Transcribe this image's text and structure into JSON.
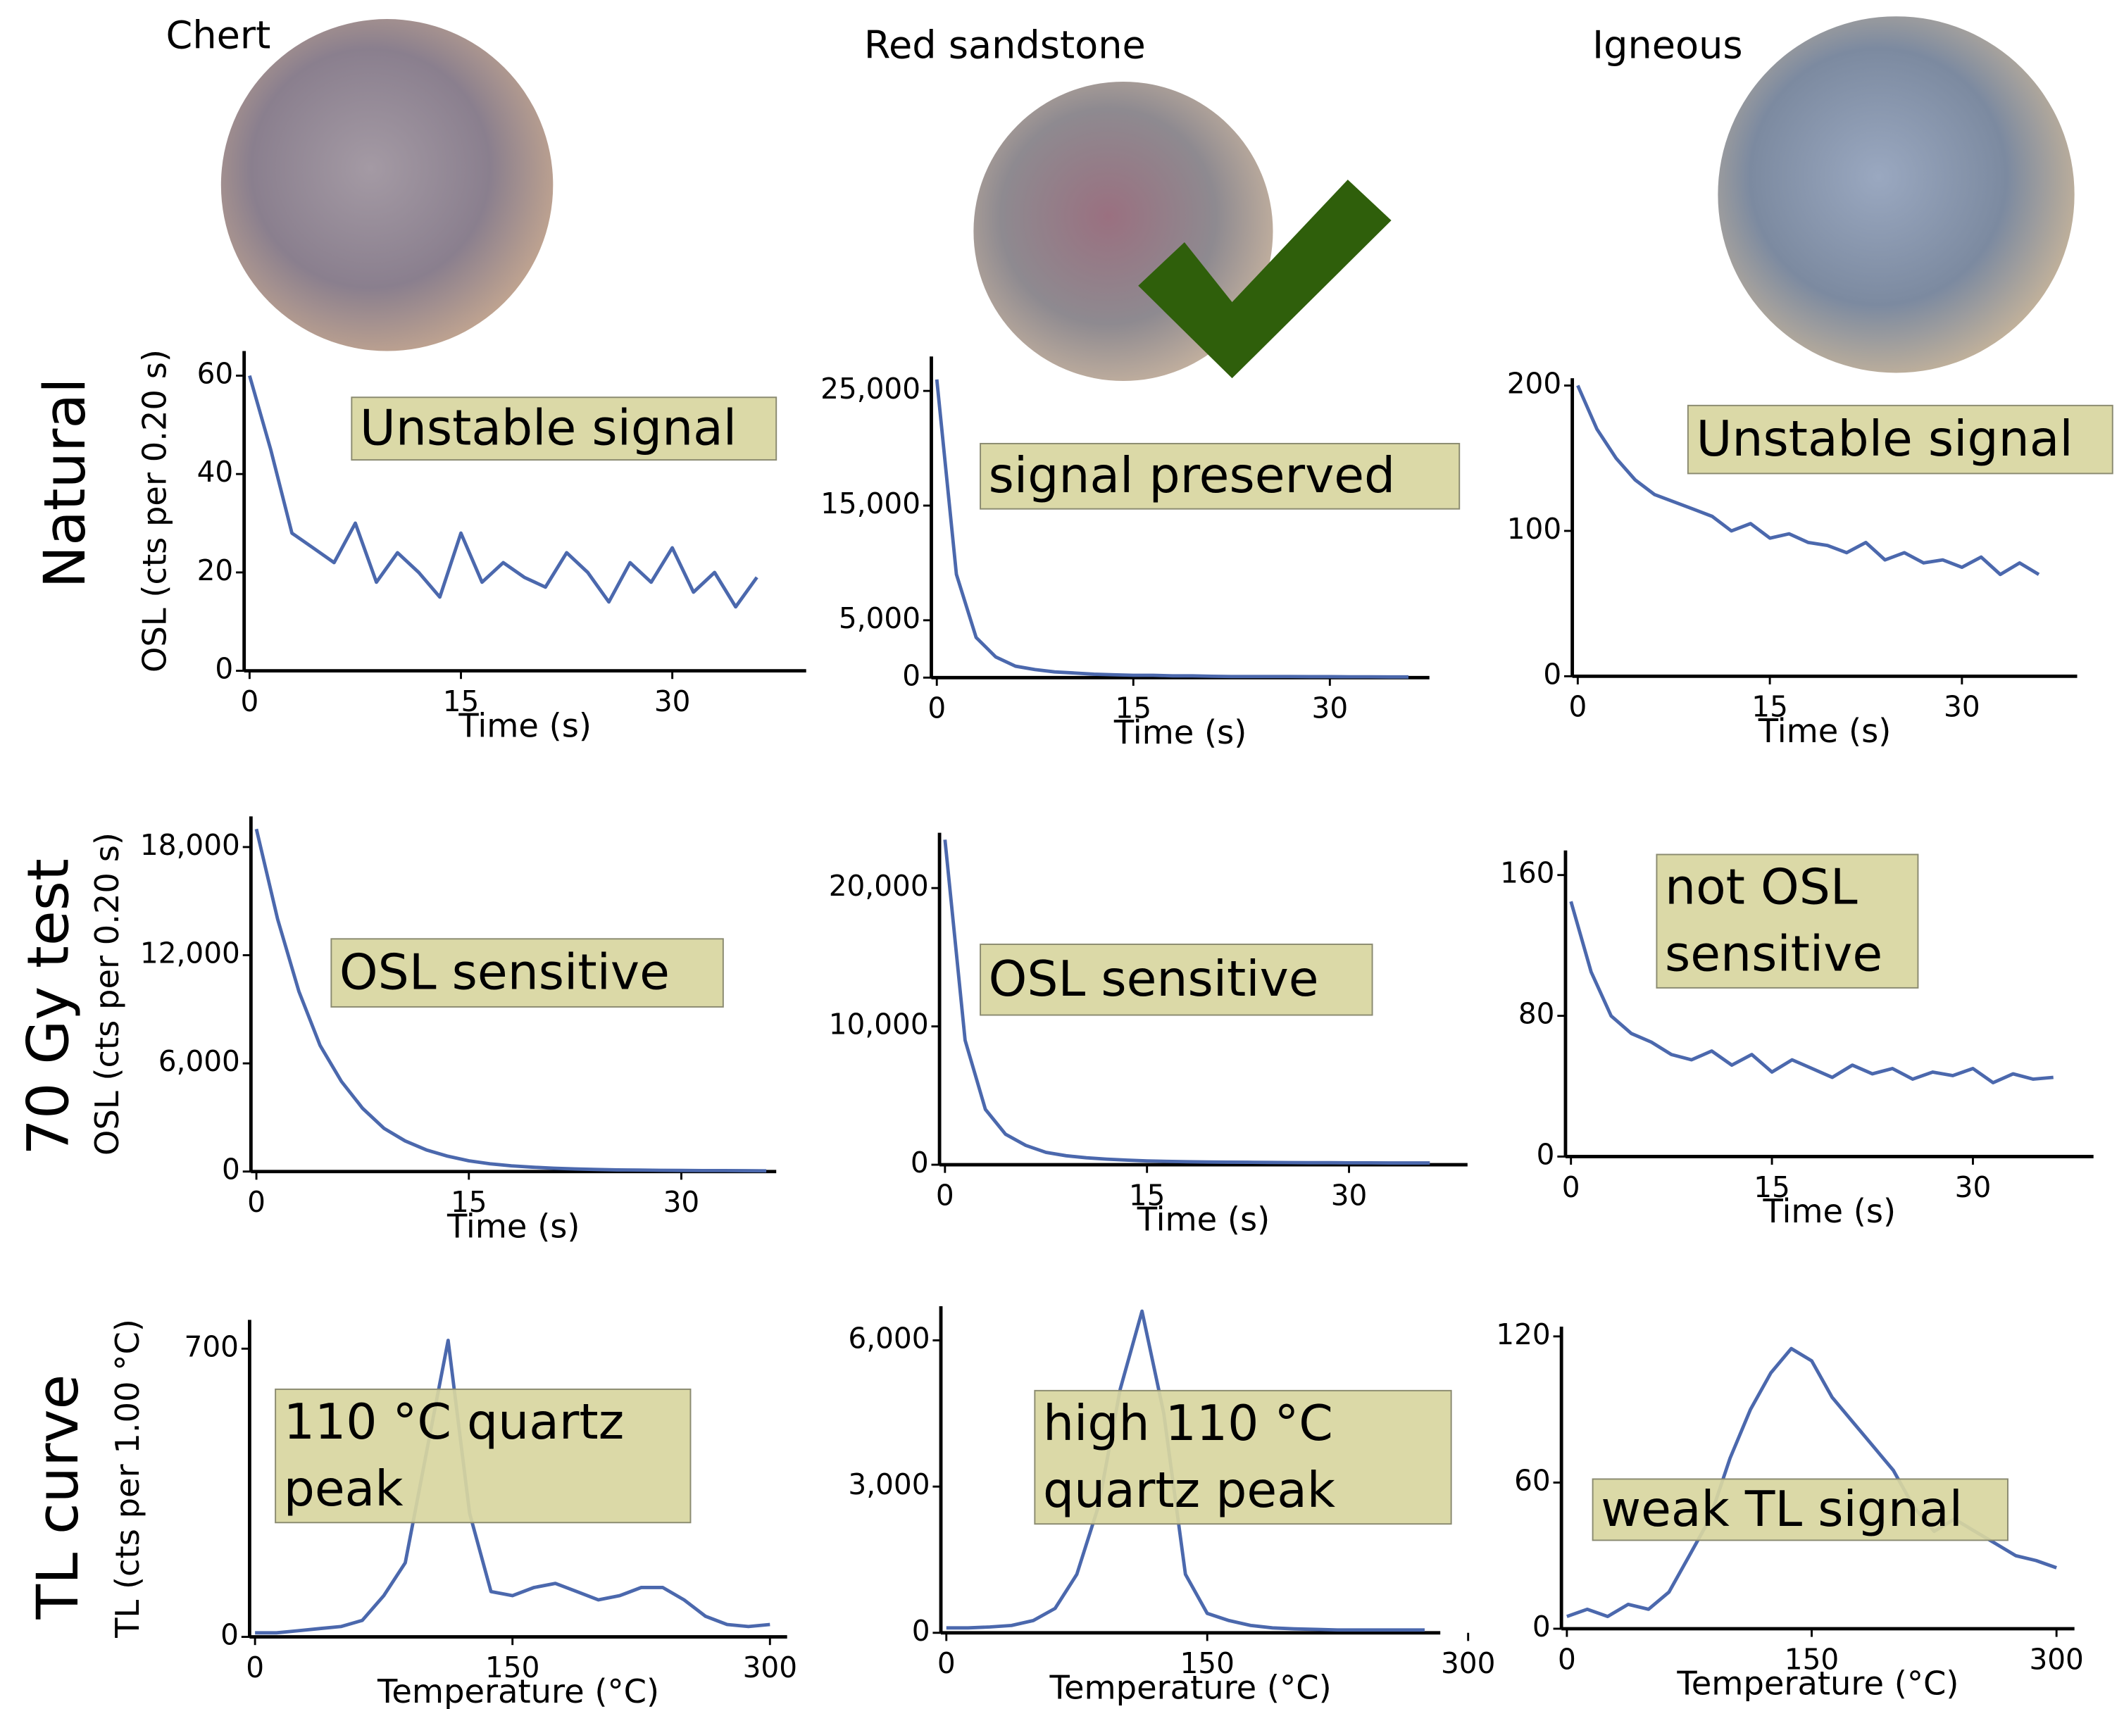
{
  "columns": [
    "Chert",
    "Red sandstone",
    "Igneous"
  ],
  "rows": [
    "Natural",
    "70 Gy test",
    "TL curve"
  ],
  "chart_data": [
    {
      "type": "line",
      "annotation": [
        "Unstable signal"
      ],
      "xlabel": "Time (s)",
      "ylabel": "OSL (cts per 0.20 s)",
      "color": "#4b68ad",
      "xlim": [
        0,
        39.5
      ],
      "xticks": [
        0,
        15,
        30
      ],
      "ylim": [
        0,
        65
      ],
      "yticks": [
        0,
        20,
        40,
        60
      ],
      "x": [
        0,
        1.5,
        3,
        4.5,
        6,
        7.5,
        9,
        10.5,
        12,
        13.5,
        15,
        16.5,
        18,
        19.5,
        21,
        22.5,
        24,
        25.5,
        27,
        28.5,
        30,
        31.5,
        33,
        34.5,
        36
      ],
      "values": [
        60,
        45,
        28,
        25,
        22,
        30,
        18,
        24,
        20,
        15,
        28,
        18,
        22,
        19,
        17,
        24,
        20,
        14,
        22,
        18,
        25,
        16,
        20,
        13,
        19
      ]
    },
    {
      "type": "line",
      "annotation": [
        "signal preserved"
      ],
      "xlabel": "Time (s)",
      "color": "#4b68ad",
      "xlim": [
        0,
        37.6
      ],
      "xticks": [
        0,
        15,
        30
      ],
      "ylim": [
        0,
        28000
      ],
      "yticks": [
        0,
        {
          "value": 5000,
          "label": "5,000"
        },
        {
          "value": 15000,
          "label": "15,000"
        },
        {
          "value": 25000,
          "label": "25,000"
        }
      ],
      "x": [
        0,
        1.5,
        3,
        4.5,
        6,
        7.5,
        9,
        10.5,
        12,
        13.5,
        15,
        16.5,
        18,
        19.5,
        21,
        22.5,
        24,
        25.5,
        27,
        28.5,
        30,
        31.5,
        33,
        34.5,
        36
      ],
      "values": [
        26000,
        9000,
        3500,
        1800,
        1000,
        700,
        500,
        400,
        300,
        250,
        200,
        200,
        150,
        150,
        120,
        100,
        100,
        100,
        90,
        80,
        80,
        70,
        70,
        60,
        60
      ]
    },
    {
      "type": "line",
      "annotation": [
        "Unstable signal"
      ],
      "xlabel": "Time (s)",
      "color": "#4b68ad",
      "xlim": [
        0,
        39
      ],
      "xticks": [
        0,
        15,
        30
      ],
      "ylim": [
        0,
        205
      ],
      "yticks": [
        0,
        100,
        200
      ],
      "x": [
        0,
        1.5,
        3,
        4.5,
        6,
        7.5,
        9,
        10.5,
        12,
        13.5,
        15,
        16.5,
        18,
        19.5,
        21,
        22.5,
        24,
        25.5,
        27,
        28.5,
        30,
        31.5,
        33,
        34.5,
        36
      ],
      "values": [
        200,
        170,
        150,
        135,
        125,
        120,
        115,
        110,
        100,
        105,
        95,
        98,
        92,
        90,
        85,
        92,
        80,
        85,
        78,
        80,
        75,
        82,
        70,
        78,
        70
      ]
    },
    {
      "type": "line",
      "annotation": [
        "OSL sensitive"
      ],
      "xlabel": "Time (s)",
      "ylabel": "OSL (cts per 0.20 s)",
      "color": "#4b68ad",
      "xlim": [
        0,
        36.7
      ],
      "xticks": [
        0,
        15,
        30
      ],
      "ylim": [
        0,
        19700
      ],
      "yticks": [
        0,
        {
          "value": 6000,
          "label": "6,000"
        },
        {
          "value": 12000,
          "label": "12,000"
        },
        {
          "value": 18000,
          "label": "18,000"
        }
      ],
      "x": [
        0,
        1.5,
        3,
        4.5,
        6,
        7.5,
        9,
        10.5,
        12,
        13.5,
        15,
        16.5,
        18,
        19.5,
        21,
        22.5,
        24,
        25.5,
        27,
        28.5,
        30,
        31.5,
        33,
        34.5,
        36
      ],
      "values": [
        19000,
        14000,
        10000,
        7000,
        5000,
        3500,
        2400,
        1700,
        1200,
        850,
        600,
        430,
        320,
        240,
        180,
        140,
        110,
        90,
        80,
        70,
        60,
        55,
        50,
        45,
        40
      ]
    },
    {
      "type": "line",
      "annotation": [
        "OSL sensitive"
      ],
      "xlabel": "Time (s)",
      "color": "#4b68ad",
      "xlim": [
        0,
        38.8
      ],
      "xticks": [
        0,
        15,
        30
      ],
      "ylim": [
        0,
        24000
      ],
      "yticks": [
        0,
        {
          "value": 10000,
          "label": "10,000"
        },
        {
          "value": 20000,
          "label": "20,000"
        }
      ],
      "x": [
        0,
        1.5,
        3,
        4.5,
        6,
        7.5,
        9,
        10.5,
        12,
        13.5,
        15,
        16.5,
        18,
        19.5,
        21,
        22.5,
        24,
        25.5,
        27,
        28.5,
        30,
        31.5,
        33,
        34.5,
        36
      ],
      "values": [
        23500,
        9000,
        4000,
        2200,
        1400,
        900,
        650,
        500,
        400,
        330,
        280,
        250,
        220,
        200,
        190,
        180,
        170,
        160,
        150,
        150,
        140,
        140,
        130,
        130,
        130
      ]
    },
    {
      "type": "line",
      "annotation": [
        "not OSL",
        "sensitive"
      ],
      "xlabel": "Time (s)",
      "color": "#4b68ad",
      "xlim": [
        0,
        39
      ],
      "xticks": [
        0,
        15,
        30
      ],
      "ylim": [
        0,
        174
      ],
      "yticks": [
        0,
        80,
        160
      ],
      "x": [
        0,
        1.5,
        3,
        4.5,
        6,
        7.5,
        9,
        10.5,
        12,
        13.5,
        15,
        16.5,
        18,
        19.5,
        21,
        22.5,
        24,
        25.5,
        27,
        28.5,
        30,
        31.5,
        33,
        34.5,
        36
      ],
      "values": [
        145,
        105,
        80,
        70,
        65,
        58,
        55,
        60,
        52,
        58,
        48,
        55,
        50,
        45,
        52,
        47,
        50,
        44,
        48,
        46,
        50,
        42,
        47,
        44,
        45
      ]
    },
    {
      "type": "line",
      "annotation": [
        "110 °C quartz",
        "peak"
      ],
      "xlabel": "Temperature (°C)",
      "ylabel": "TL (cts per 1.00 °C)",
      "color": "#4b68ad",
      "xlim": [
        0,
        310
      ],
      "xticks": [
        0,
        150,
        300
      ],
      "ylim": [
        0,
        770
      ],
      "yticks": [
        0,
        700
      ],
      "x": [
        0,
        12.5,
        25,
        37.5,
        50,
        62.5,
        75,
        87.5,
        100,
        112.5,
        125,
        137.5,
        150,
        162.5,
        175,
        187.5,
        200,
        212.5,
        225,
        237.5,
        250,
        262.5,
        275,
        287.5,
        300
      ],
      "values": [
        10,
        10,
        15,
        20,
        25,
        40,
        100,
        180,
        450,
        720,
        300,
        110,
        100,
        120,
        130,
        110,
        90,
        100,
        120,
        120,
        90,
        50,
        30,
        25,
        30
      ]
    },
    {
      "type": "line",
      "annotation": [
        "high 110 °C",
        "quartz peak"
      ],
      "xlabel": "Temperature (°C)",
      "color": "#4b68ad",
      "xlim": [
        0,
        284
      ],
      "xticks": [
        0,
        150,
        300
      ],
      "ylim": [
        0,
        6700
      ],
      "yticks": [
        0,
        {
          "value": 3000,
          "label": "3,000"
        },
        {
          "value": 6000,
          "label": "6,000"
        }
      ],
      "x": [
        0,
        12.5,
        25,
        37.5,
        50,
        62.5,
        75,
        87.5,
        100,
        112.5,
        125,
        137.5,
        150,
        162.5,
        175,
        187.5,
        200,
        212.5,
        225,
        237.5,
        250,
        262.5,
        275
      ],
      "values": [
        100,
        100,
        120,
        150,
        250,
        500,
        1200,
        2600,
        5000,
        6600,
        4500,
        1200,
        400,
        250,
        150,
        100,
        80,
        70,
        60,
        60,
        60,
        60,
        60
      ]
    },
    {
      "type": "line",
      "annotation": [
        "weak TL signal"
      ],
      "xlabel": "Temperature (°C)",
      "color": "#4b68ad",
      "xlim": [
        0,
        311
      ],
      "xticks": [
        0,
        150,
        300
      ],
      "ylim": [
        0,
        124
      ],
      "yticks": [
        0,
        60,
        120
      ],
      "x": [
        0,
        12.5,
        25,
        37.5,
        50,
        62.5,
        75,
        87.5,
        100,
        112.5,
        125,
        137.5,
        150,
        162.5,
        175,
        187.5,
        200,
        212.5,
        225,
        237.5,
        250,
        262.5,
        275,
        287.5,
        300
      ],
      "values": [
        5,
        8,
        5,
        10,
        8,
        15,
        30,
        45,
        70,
        90,
        105,
        115,
        110,
        95,
        85,
        75,
        65,
        50,
        40,
        45,
        40,
        35,
        30,
        28,
        25
      ]
    }
  ]
}
